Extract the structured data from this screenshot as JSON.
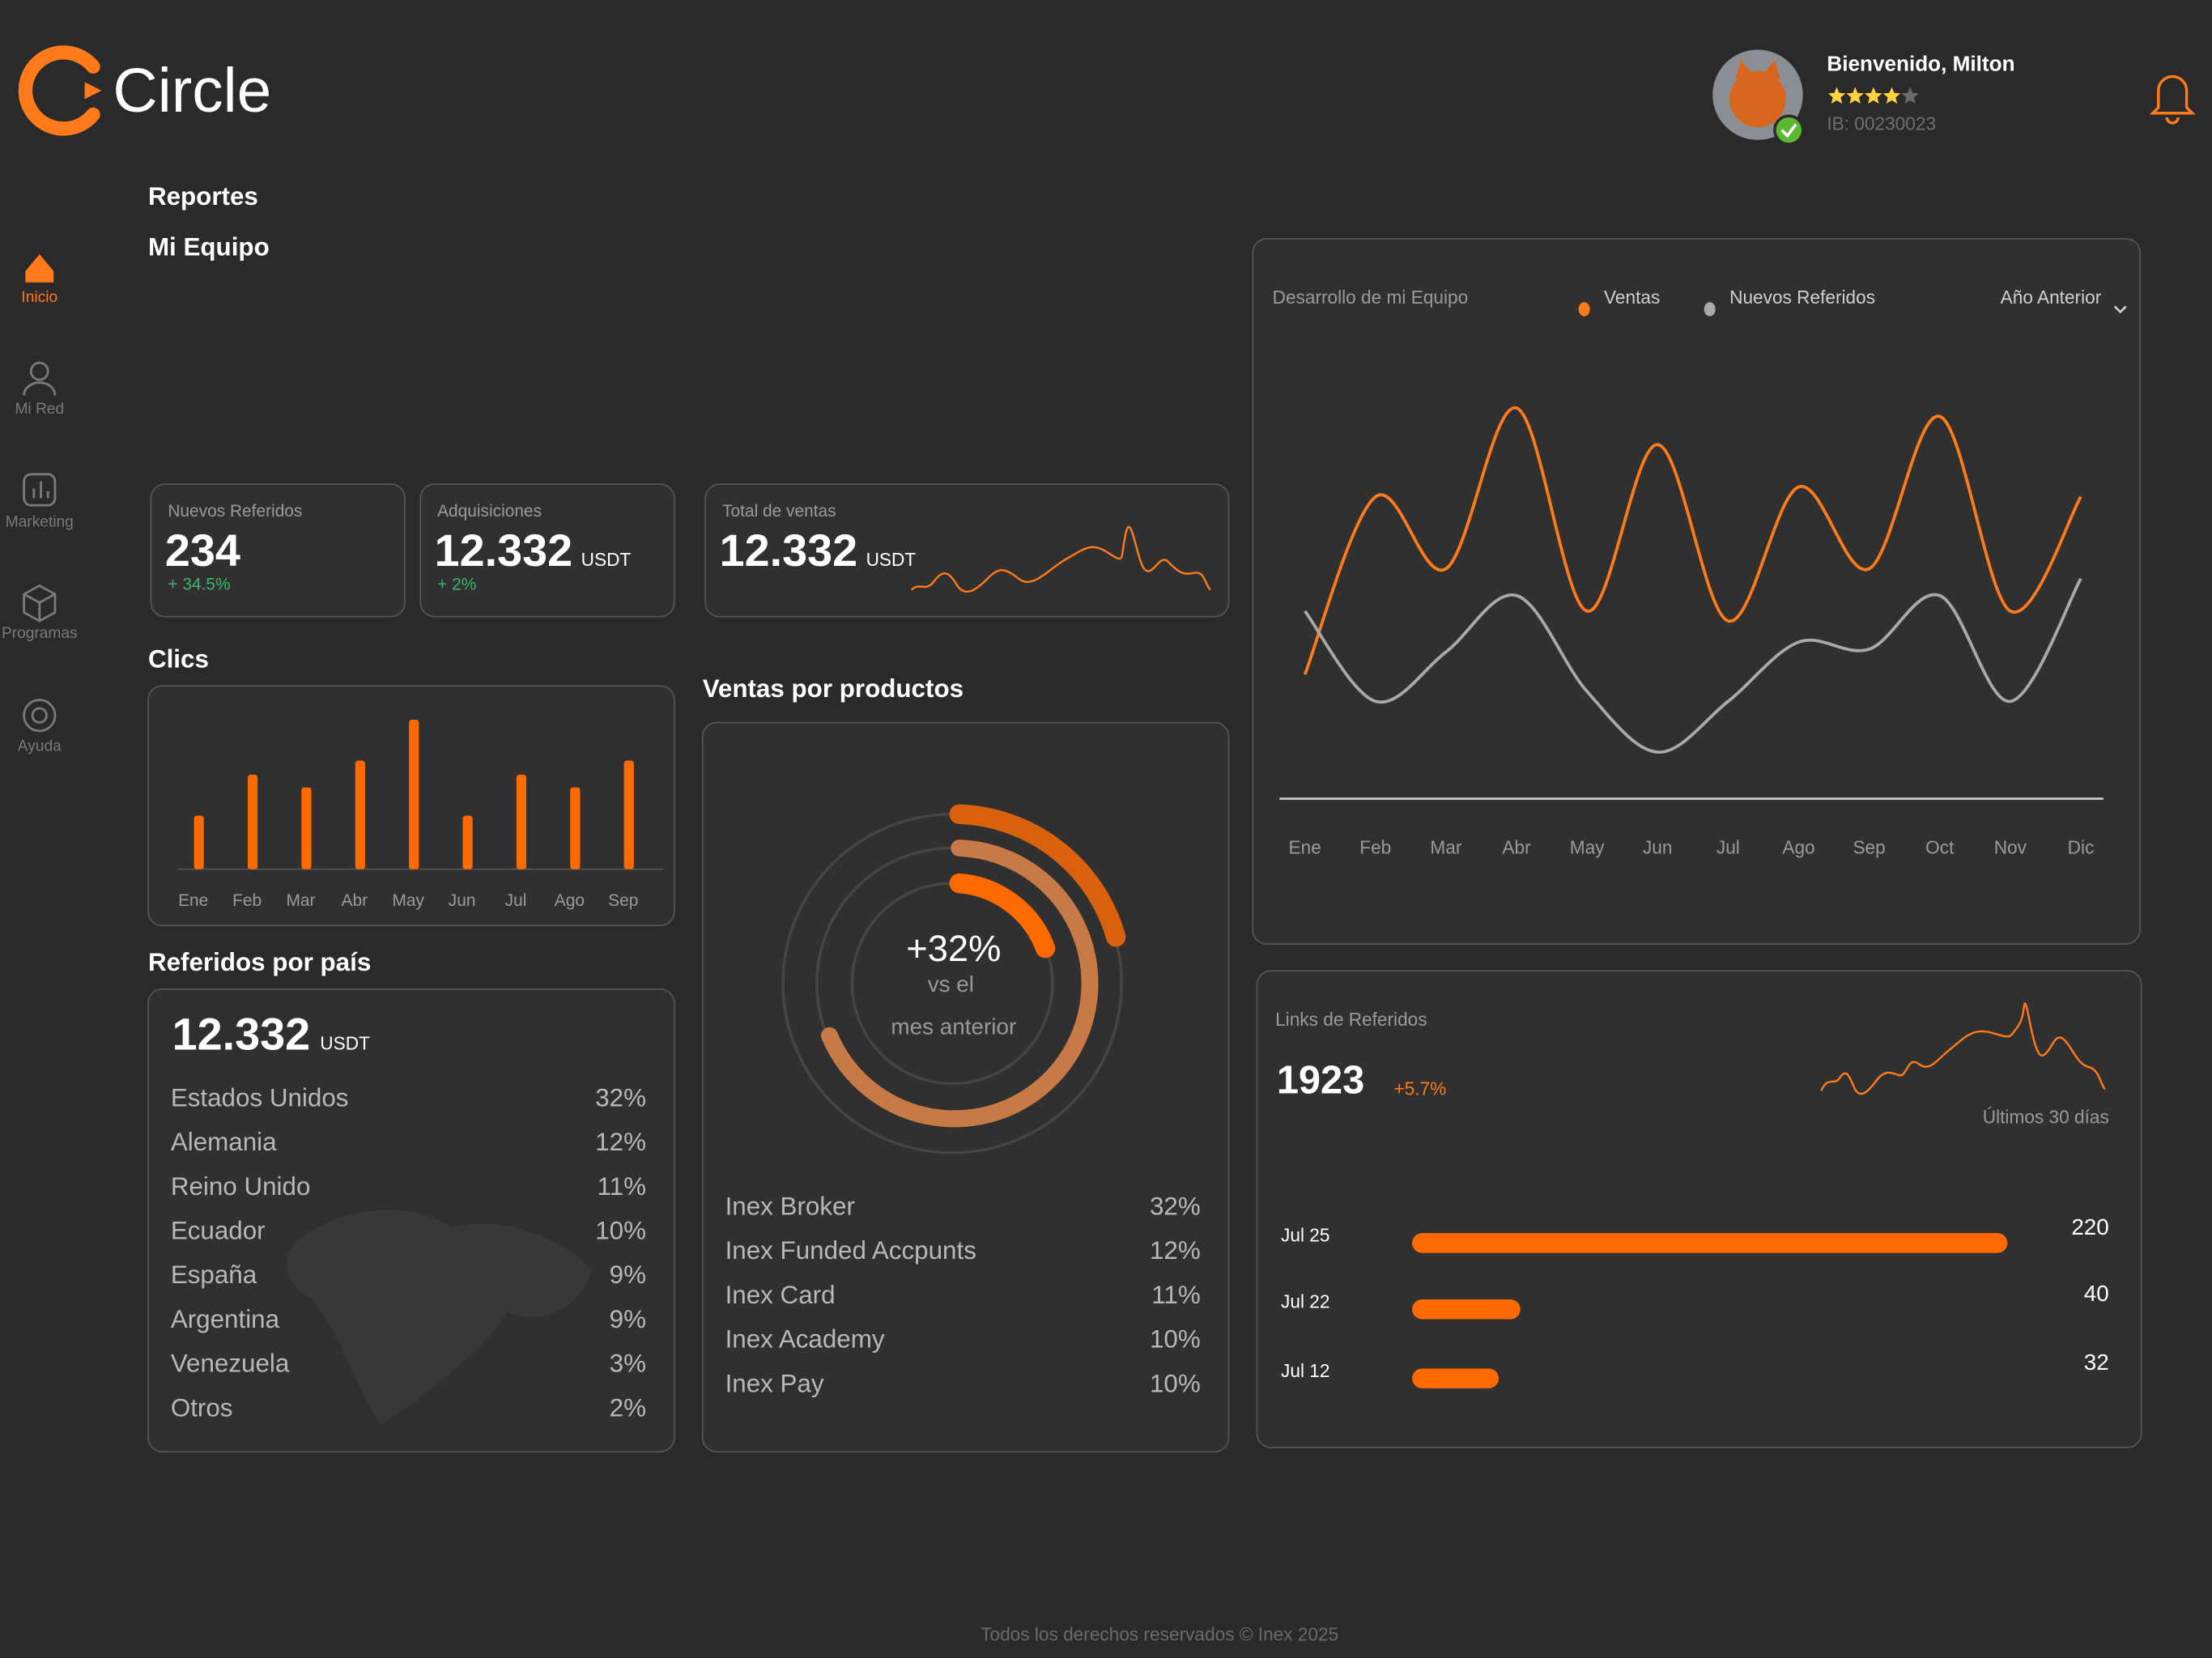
{
  "brand": "Circle",
  "user": {
    "greeting": "Bienvenido, Milton",
    "rating": 4,
    "rating_max": 5,
    "id": "IB: 00230023"
  },
  "nav": [
    {
      "label": "Inicio",
      "active": true
    },
    {
      "label": "Mi Red",
      "active": false
    },
    {
      "label": "Marketing",
      "active": false
    },
    {
      "label": "Programas",
      "active": false
    },
    {
      "label": "Ayuda",
      "active": false
    }
  ],
  "sections": {
    "reports": "Reportes",
    "team": "Mi Equipo"
  },
  "kpis": [
    {
      "label": "Nuevos Referidos",
      "value": "234",
      "change": "+ 34.5%"
    },
    {
      "label": "Adquisiciones",
      "value": "12.332",
      "unit": "USDT",
      "change": "+ 2%"
    },
    {
      "label": "Total de ventas",
      "value": "12.332",
      "unit": "USDT"
    }
  ],
  "clicks": {
    "type": "bar",
    "title": "Clics",
    "categories": [
      "Ene",
      "Feb",
      "Mar",
      "Abr",
      "May",
      "Jun",
      "Jul",
      "Ago",
      "Sep"
    ],
    "values": [
      38,
      67,
      58,
      77,
      106,
      38,
      67,
      58,
      77
    ],
    "color": "#ff6a00"
  },
  "countries": {
    "title": "Referidos por país",
    "total": "12.332",
    "unit": "USDT",
    "rows": [
      [
        "Estados Unidos",
        "32%"
      ],
      [
        "Alemania",
        "12%"
      ],
      [
        "Reino Unido",
        "11%"
      ],
      [
        "Ecuador",
        "10%"
      ],
      [
        "España",
        "9%"
      ],
      [
        "Argentina",
        "9%"
      ],
      [
        "Venezuela",
        "3%"
      ],
      [
        "Otros",
        "2%"
      ]
    ]
  },
  "products": {
    "title": "Ventas por productos",
    "center": "+32%",
    "caption": [
      "vs el",
      "mes anterior"
    ],
    "rows": [
      [
        "Inex Broker",
        "32%"
      ],
      [
        "Inex Funded Accpunts",
        "12%"
      ],
      [
        "Inex Card",
        "11%"
      ],
      [
        "Inex Academy",
        "10%"
      ],
      [
        "Inex Pay",
        "10%"
      ]
    ]
  },
  "team_chart": {
    "type": "line",
    "title": "Desarrollo de mi Equipo",
    "filter": "Año Anterior",
    "categories": [
      "Ene",
      "Feb",
      "Mar",
      "Abr",
      "May",
      "Jun",
      "Jul",
      "Ago",
      "Sep",
      "Oct",
      "Nov",
      "Dic"
    ],
    "series": [
      {
        "name": "Ventas",
        "color": "#ff7a1a",
        "values": [
          88,
          214,
          163,
          277,
          133,
          251,
          126,
          221,
          163,
          271,
          133,
          214
        ]
      },
      {
        "name": "Nuevos Referidos",
        "color": "#a9a9a9",
        "values": [
          133,
          69,
          104,
          144,
          76,
          33,
          69,
          111,
          106,
          144,
          69,
          156
        ]
      }
    ]
  },
  "links": {
    "title": "Links de Referidos",
    "value": "1923",
    "change": "+5.7%",
    "period": "Últimos 30 días",
    "bars": {
      "type": "bar",
      "categories": [
        "Jul 25",
        "Jul 22",
        "Jul 12"
      ],
      "values": [
        220,
        40,
        32
      ],
      "color": "#ff6a00"
    }
  },
  "footer": "Todos los derechos reservados © Inex 2025"
}
